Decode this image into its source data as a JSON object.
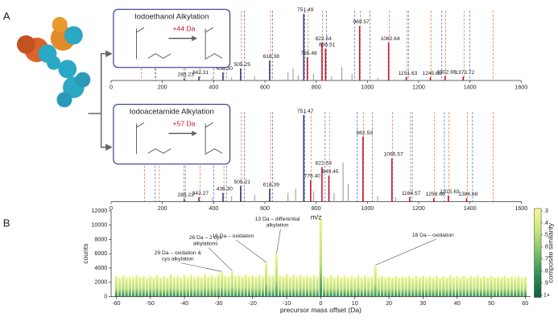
{
  "panels": {
    "a": "A",
    "b": "B"
  },
  "chart_data": [
    {
      "type": "spectrum",
      "xlim": [
        0,
        1600
      ],
      "xticks": [
        0,
        200,
        400,
        600,
        800,
        1000,
        1200,
        1400,
        1600
      ],
      "ylim": [
        0,
        100
      ],
      "inset_title": "Iodoethanol Alkylation",
      "inset_shift": "+44 Da",
      "ref_lines": [
        {
          "color": "#e8743b",
          "x": [
            118,
            175,
            290,
            347,
            440,
            508,
            622,
            768,
            825,
            972,
            1085,
            1155,
            1248,
            1305,
            1377,
            1490
          ]
        },
        {
          "color": "#4a6fd0",
          "x": [
            172,
            285,
            400,
            450,
            520,
            630,
            755,
            840,
            950,
            1010,
            1160,
            1290,
            1400
          ]
        }
      ],
      "unlabeled": {
        "color": "#a0a0a0",
        "x": [
          395,
          470,
          560,
          690,
          710,
          730,
          790,
          860,
          900,
          940,
          1040
        ],
        "values": [
          4,
          5,
          6,
          12,
          18,
          8,
          10,
          6,
          20,
          10,
          4
        ]
      },
      "peaks": {
        "x": [
          285.23,
          342.31,
          436.3,
          505.25,
          618.38,
          751.49,
          765.48,
          822.54,
          836.51,
          969.57,
          1082.64,
          1151.63,
          1245.65,
          1302.66,
          1373.72
        ],
        "labels": [
          "285.23",
          "342.31",
          "436.30",
          "505.25",
          "618.38",
          "751.49",
          "765.48",
          "822.54",
          "836.51",
          "969.57",
          "1082.64",
          "1151.63",
          "1245.65",
          "1302.66",
          "1373.72"
        ],
        "values": [
          3,
          6,
          12,
          18,
          30,
          100,
          35,
          57,
          48,
          82,
          57,
          5,
          5,
          7,
          6
        ],
        "colors": [
          "#2b3a8c",
          "#2b3a8c",
          "#2b3a8c",
          "#2b3a8c",
          "#2b3a8c",
          "#2b3a8c",
          "#c8102e",
          "#c8102e",
          "#c8102e",
          "#c8102e",
          "#c8102e",
          "#c8102e",
          "#c8102e",
          "#c8102e",
          "#c8102e"
        ]
      }
    },
    {
      "type": "spectrum",
      "xlim": [
        0,
        1600
      ],
      "xticks": [
        0,
        200,
        400,
        600,
        800,
        1000,
        1200,
        1400,
        1600
      ],
      "ylim": [
        0,
        100
      ],
      "xlabel": "m/z",
      "inset_title": "Iodoacetamide Alkylation",
      "inset_shift": "+57 Da",
      "ref_lines": [
        {
          "color": "#e8743b",
          "x": [
            130,
            188,
            290,
            347,
            440,
            508,
            622,
            780,
            852,
            985,
            1098,
            1168,
            1262,
            1318,
            1390,
            1490
          ]
        },
        {
          "color": "#4a6fd0",
          "x": [
            172,
            285,
            400,
            450,
            520,
            630,
            755,
            835,
            960,
            1020,
            1175,
            1300,
            1410
          ]
        }
      ],
      "unlabeled": {
        "color": "#a0a0a0",
        "x": [
          395,
          470,
          560,
          690,
          720,
          790,
          870,
          905,
          925,
          1040,
          1110
        ],
        "values": [
          4,
          6,
          8,
          10,
          15,
          12,
          10,
          45,
          20,
          6,
          5
        ]
      },
      "peaks": {
        "x": [
          285.22,
          342.27,
          436.3,
          505.21,
          618.39,
          751.47,
          778.4,
          822.53,
          849.45,
          982.53,
          1095.57,
          1164.57,
          1258.66,
          1315.63,
          1386.68
        ],
        "labels": [
          "285.22",
          "342.27",
          "436.30",
          "505.21",
          "618.39",
          "751.47",
          "778.40",
          "822.53",
          "849.45",
          "982.53",
          "1095.57",
          "1164.57",
          "1258.66",
          "1315.63",
          "1386.68"
        ],
        "values": [
          3,
          5,
          10,
          18,
          15,
          100,
          25,
          40,
          30,
          75,
          50,
          5,
          4,
          7,
          4
        ],
        "colors": [
          "#2b3a8c",
          "#2b3a8c",
          "#2b3a8c",
          "#2b3a8c",
          "#2b3a8c",
          "#2b3a8c",
          "#c8102e",
          "#c8102e",
          "#c8102e",
          "#c8102e",
          "#c8102e",
          "#c8102e",
          "#c8102e",
          "#c8102e",
          "#c8102e"
        ]
      }
    },
    {
      "type": "bar",
      "xlabel": "precursor mass offset (Da)",
      "ylabel": "counts",
      "colorbar_label": "composite similarity",
      "xlim": [
        -61.5,
        61.5
      ],
      "xticks": [
        -60,
        -50,
        -40,
        -30,
        -20,
        -10,
        0,
        10,
        20,
        30,
        40,
        50,
        60
      ],
      "ylim": [
        0,
        12000
      ],
      "yticks": [
        0,
        2000,
        4000,
        6000,
        8000,
        10000,
        12000
      ],
      "colormap": [
        "#f6f99c",
        "#c7e57a",
        "#78c066",
        "#2e8e55",
        "#0f5f3c"
      ],
      "clim": [
        0.28,
        1.02
      ],
      "cticks": [
        {
          "value": 0.3,
          "label": ".3"
        },
        {
          "value": 0.4,
          "label": ".4"
        },
        {
          "value": 0.5,
          "label": ".5"
        },
        {
          "value": 0.6,
          "label": ".6"
        },
        {
          "value": 0.7,
          "label": ".7"
        },
        {
          "value": 0.8,
          "label": ".8"
        },
        {
          "value": 0.9,
          "label": ".9"
        },
        {
          "value": 1,
          "label": "1+"
        }
      ],
      "x": [
        -60,
        -59,
        -58,
        -57,
        -56,
        -55,
        -54,
        -53,
        -52,
        -51,
        -50,
        -49,
        -48,
        -47,
        -46,
        -45,
        -44,
        -43,
        -42,
        -41,
        -40,
        -39,
        -38,
        -37,
        -36,
        -35,
        -34,
        -33,
        -32,
        -31,
        -30,
        -29,
        -28,
        -27,
        -26,
        -25,
        -24,
        -23,
        -22,
        -21,
        -20,
        -19,
        -18,
        -17,
        -16,
        -15,
        -14,
        -13,
        -12,
        -11,
        -10,
        -9,
        -8,
        -7,
        -6,
        -5,
        -4,
        -3,
        -2,
        -1,
        0,
        1,
        2,
        3,
        4,
        5,
        6,
        7,
        8,
        9,
        10,
        11,
        12,
        13,
        14,
        15,
        16,
        17,
        18,
        19,
        20,
        21,
        22,
        23,
        24,
        25,
        26,
        27,
        28,
        29,
        30,
        31,
        32,
        33,
        34,
        35,
        36,
        37,
        38,
        39,
        40,
        41,
        42,
        43,
        44,
        45,
        46,
        47,
        48,
        49,
        50,
        51,
        52,
        53,
        54,
        55,
        56,
        57,
        58,
        59,
        60
      ],
      "values": [
        2900,
        2600,
        2950,
        2700,
        2800,
        2650,
        3000,
        2700,
        2850,
        2600,
        2900,
        2700,
        3000,
        2650,
        2850,
        2700,
        3100,
        2750,
        2900,
        2650,
        3000,
        2700,
        3050,
        2750,
        2900,
        2700,
        3100,
        2800,
        3000,
        2700,
        3150,
        3400,
        2900,
        2800,
        3500,
        2900,
        3000,
        2800,
        3100,
        2850,
        3000,
        2750,
        3050,
        2800,
        4700,
        2900,
        3000,
        5800,
        2900,
        2800,
        3100,
        2800,
        3000,
        2750,
        3050,
        2800,
        2950,
        2750,
        3000,
        2800,
        10800,
        2900,
        2700,
        3000,
        2650,
        2900,
        2700,
        2950,
        2650,
        2850,
        2700,
        2950,
        2650,
        2900,
        2700,
        2800,
        4300,
        2700,
        2900,
        2650,
        2850,
        2700,
        2900,
        2650,
        2850,
        2700,
        2900,
        2650,
        2850,
        2700,
        2900,
        2650,
        2850,
        2700,
        2900,
        2600,
        2850,
        2700,
        2950,
        2650,
        2850,
        2700,
        2900,
        2650,
        2850,
        2700,
        2900,
        2650,
        2850,
        2700,
        2900,
        2650,
        2800,
        2700,
        2900,
        2650,
        2800,
        2700,
        2900,
        2650,
        2800
      ],
      "annotations": [
        {
          "lines": [
            "29 Da – oxidation &",
            "cys alkylation"
          ],
          "x": -29,
          "y": 3400
        },
        {
          "lines": [
            "26 Da – 2 cys",
            "alkylations"
          ],
          "x": -26,
          "y": 3500
        },
        {
          "lines": [
            "16 Da – oxidation"
          ],
          "x": -16,
          "y": 4700
        },
        {
          "lines": [
            "13 Da – differential",
            "alkylation"
          ],
          "x": -13,
          "y": 5800
        },
        {
          "lines": [
            "16 Da – oxidation"
          ],
          "x": 16,
          "y": 4300
        }
      ]
    }
  ]
}
